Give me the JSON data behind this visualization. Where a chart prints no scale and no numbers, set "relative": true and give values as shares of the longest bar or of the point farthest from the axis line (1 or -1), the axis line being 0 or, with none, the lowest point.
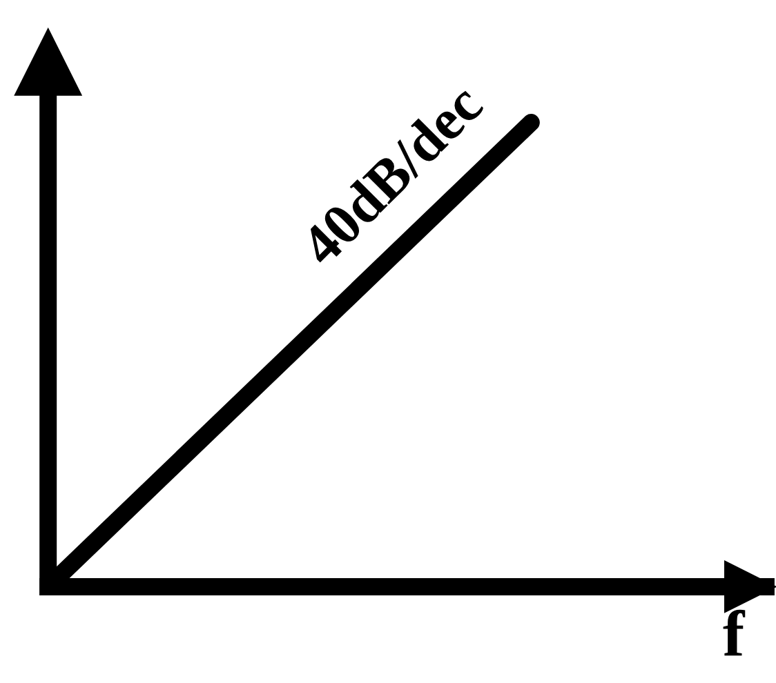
{
  "chart_data": {
    "type": "line",
    "relative": true,
    "xlabel": "f",
    "categories": [
      null,
      null
    ],
    "series": [
      {
        "color": "#000000",
        "values": [
          0,
          1
        ]
      }
    ],
    "annotations": [
      "40dB/dec"
    ],
    "grid": false,
    "legend": false
  }
}
